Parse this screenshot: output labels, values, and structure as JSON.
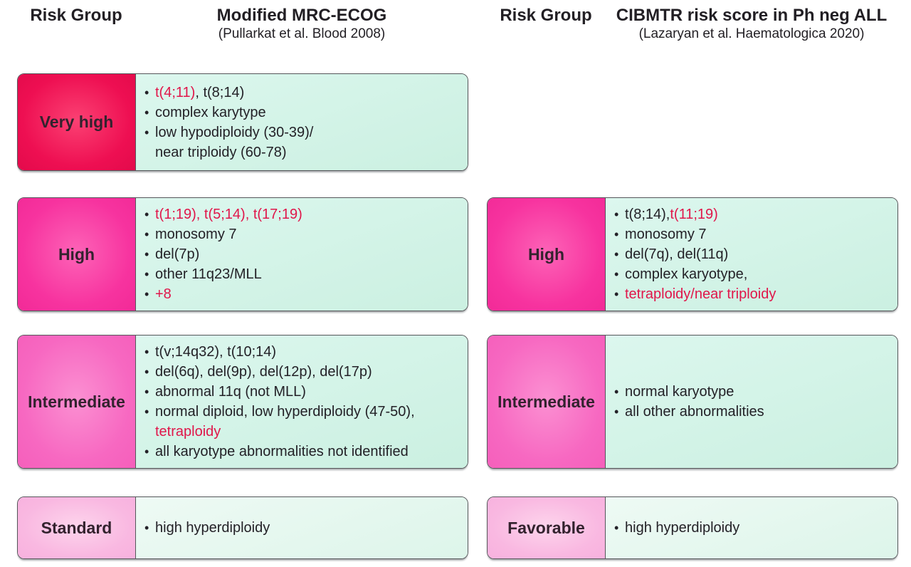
{
  "colors": {
    "accent_red_text": "#e0164a",
    "very_high_box": "#ee0f52",
    "high_box": "#f7339f",
    "intermediate_box": "#f768c1",
    "standard_favorable_box": "#f9b8e1",
    "criteria_box_mint": "#cbf0e1",
    "criteria_box_mint_light": "#ddf5ea",
    "border": "#55565a",
    "text_dark": "#232127"
  },
  "left_panel": {
    "header": {
      "risk_group_label": "Risk Group",
      "title": "Modified MRC-ECOG",
      "subtitle": "(Pullarkat et al. Blood 2008)"
    },
    "rows": [
      {
        "id": "very-high",
        "label": "Very high",
        "tier": "very_high",
        "lines": [
          {
            "bullet": true,
            "parts": [
              {
                "t": "t(4;11)",
                "red": true
              },
              {
                "t": ", t(8;14)"
              }
            ]
          },
          {
            "bullet": true,
            "parts": [
              {
                "t": "complex karytype"
              }
            ]
          },
          {
            "bullet": true,
            "parts": [
              {
                "t": "low hypodiploidy (30-39)/"
              }
            ]
          },
          {
            "bullet": false,
            "parts": [
              {
                "t": "near triploidy (60-78)"
              }
            ]
          }
        ]
      },
      {
        "id": "high",
        "label": "High",
        "tier": "high",
        "lines": [
          {
            "bullet": true,
            "parts": [
              {
                "t": "t(1;19), t(5;14), t(17;19)",
                "red": true
              }
            ]
          },
          {
            "bullet": true,
            "parts": [
              {
                "t": "monosomy 7"
              }
            ]
          },
          {
            "bullet": true,
            "parts": [
              {
                "t": "del(7p)"
              }
            ]
          },
          {
            "bullet": true,
            "parts": [
              {
                "t": "other 11q23/MLL"
              }
            ]
          },
          {
            "bullet": true,
            "parts": [
              {
                "t": "+8",
                "red": true
              }
            ]
          }
        ]
      },
      {
        "id": "intermediate",
        "label": "Intermediate",
        "tier": "intermediate",
        "lines": [
          {
            "bullet": true,
            "parts": [
              {
                "t": "t(v;14q32), t(10;14)"
              }
            ]
          },
          {
            "bullet": true,
            "parts": [
              {
                "t": "del(6q), del(9p), del(12p), del(17p)"
              }
            ]
          },
          {
            "bullet": true,
            "parts": [
              {
                "t": "abnormal 11q (not MLL)"
              }
            ]
          },
          {
            "bullet": true,
            "parts": [
              {
                "t": "normal diploid, low hyperdiploidy (47-50),"
              }
            ]
          },
          {
            "bullet": false,
            "parts": [
              {
                "t": "tetraploidy",
                "red": true
              }
            ]
          },
          {
            "bullet": true,
            "parts": [
              {
                "t": "all karyotype abnormalities not identified"
              }
            ]
          }
        ]
      },
      {
        "id": "standard",
        "label": "Standard",
        "tier": "standard",
        "lines": [
          {
            "bullet": true,
            "parts": [
              {
                "t": "high hyperdiploidy"
              }
            ]
          }
        ]
      }
    ]
  },
  "right_panel": {
    "header": {
      "risk_group_label": "Risk Group",
      "title": "CIBMTR risk score in Ph neg ALL",
      "subtitle": "(Lazaryan et al. Haematologica 2020)"
    },
    "rows": [
      {
        "id": "high",
        "label": "High",
        "tier": "high",
        "lines": [
          {
            "bullet": true,
            "parts": [
              {
                "t": "t(8;14), "
              },
              {
                "t": "t(11;19)",
                "red": true
              }
            ]
          },
          {
            "bullet": true,
            "parts": [
              {
                "t": "monosomy 7"
              }
            ]
          },
          {
            "bullet": true,
            "parts": [
              {
                "t": "del(7q), del(11q)"
              }
            ]
          },
          {
            "bullet": true,
            "parts": [
              {
                "t": "complex karyotype,"
              }
            ]
          },
          {
            "bullet": true,
            "parts": [
              {
                "t": "tetraploidy/near triploidy",
                "red": true
              }
            ]
          }
        ]
      },
      {
        "id": "intermediate",
        "label": "Intermediate",
        "tier": "intermediate",
        "lines": [
          {
            "bullet": true,
            "parts": [
              {
                "t": "normal karyotype"
              }
            ]
          },
          {
            "bullet": true,
            "parts": [
              {
                "t": "all other abnormalities"
              }
            ]
          }
        ]
      },
      {
        "id": "favorable",
        "label": "Favorable",
        "tier": "favorable",
        "lines": [
          {
            "bullet": true,
            "parts": [
              {
                "t": "high hyperdiploidy"
              }
            ]
          }
        ]
      }
    ]
  }
}
